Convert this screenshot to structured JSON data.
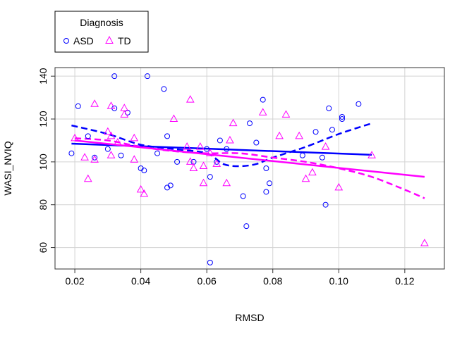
{
  "chart_data": {
    "type": "scatter",
    "xlabel": "RMSD",
    "ylabel": "WASI_NVIQ",
    "xlim": [
      0.014,
      0.132
    ],
    "ylim": [
      50,
      144
    ],
    "x_ticks": [
      0.02,
      0.04,
      0.06,
      0.08,
      0.1,
      0.12
    ],
    "x_tick_labels": [
      "0.02",
      "0.04",
      "0.06",
      "0.08",
      "0.10",
      "0.12"
    ],
    "y_ticks": [
      60,
      80,
      100,
      120,
      140
    ],
    "y_tick_labels": [
      "60",
      "80",
      "100",
      "120",
      "140"
    ],
    "grid": true,
    "legend": {
      "title": "Diagnosis",
      "placement": "top-left-outside",
      "entries": [
        "ASD",
        "TD"
      ]
    },
    "series": [
      {
        "name": "ASD",
        "color": "#0000ff",
        "marker": "circle",
        "points": [
          [
            0.019,
            104
          ],
          [
            0.021,
            126
          ],
          [
            0.024,
            112
          ],
          [
            0.026,
            102
          ],
          [
            0.03,
            106
          ],
          [
            0.032,
            140
          ],
          [
            0.032,
            125
          ],
          [
            0.034,
            103
          ],
          [
            0.036,
            123
          ],
          [
            0.04,
            97
          ],
          [
            0.041,
            96
          ],
          [
            0.042,
            140
          ],
          [
            0.045,
            104
          ],
          [
            0.047,
            134
          ],
          [
            0.048,
            112
          ],
          [
            0.048,
            88
          ],
          [
            0.049,
            89
          ],
          [
            0.051,
            100
          ],
          [
            0.056,
            100
          ],
          [
            0.06,
            106
          ],
          [
            0.061,
            93
          ],
          [
            0.061,
            53
          ],
          [
            0.063,
            100
          ],
          [
            0.064,
            110
          ],
          [
            0.066,
            106
          ],
          [
            0.071,
            84
          ],
          [
            0.072,
            70
          ],
          [
            0.073,
            118
          ],
          [
            0.075,
            109
          ],
          [
            0.077,
            129
          ],
          [
            0.078,
            97
          ],
          [
            0.078,
            86
          ],
          [
            0.079,
            90
          ],
          [
            0.089,
            103
          ],
          [
            0.093,
            114
          ],
          [
            0.095,
            102
          ],
          [
            0.096,
            80
          ],
          [
            0.097,
            125
          ],
          [
            0.098,
            115
          ],
          [
            0.101,
            121
          ],
          [
            0.101,
            120
          ],
          [
            0.106,
            127
          ]
        ],
        "fit_linear": [
          [
            0.019,
            108.5
          ],
          [
            0.11,
            103.3
          ]
        ],
        "fit_smooth": [
          [
            0.019,
            117
          ],
          [
            0.03,
            113
          ],
          [
            0.04,
            108
          ],
          [
            0.05,
            106
          ],
          [
            0.06,
            104
          ],
          [
            0.065,
            99
          ],
          [
            0.07,
            98
          ],
          [
            0.075,
            99
          ],
          [
            0.08,
            102
          ],
          [
            0.09,
            107
          ],
          [
            0.1,
            113
          ],
          [
            0.11,
            118
          ]
        ]
      },
      {
        "name": "TD",
        "color": "#ff00ff",
        "marker": "triangle",
        "points": [
          [
            0.02,
            111
          ],
          [
            0.023,
            102
          ],
          [
            0.024,
            92
          ],
          [
            0.026,
            127
          ],
          [
            0.026,
            101
          ],
          [
            0.03,
            114
          ],
          [
            0.031,
            126
          ],
          [
            0.031,
            112
          ],
          [
            0.031,
            103
          ],
          [
            0.033,
            109
          ],
          [
            0.035,
            125
          ],
          [
            0.035,
            122
          ],
          [
            0.038,
            111
          ],
          [
            0.038,
            101
          ],
          [
            0.04,
            87
          ],
          [
            0.041,
            85
          ],
          [
            0.05,
            120
          ],
          [
            0.054,
            107
          ],
          [
            0.055,
            129
          ],
          [
            0.055,
            100
          ],
          [
            0.056,
            97
          ],
          [
            0.058,
            107
          ],
          [
            0.059,
            90
          ],
          [
            0.059,
            98
          ],
          [
            0.061,
            104
          ],
          [
            0.063,
            99
          ],
          [
            0.066,
            90
          ],
          [
            0.067,
            110
          ],
          [
            0.068,
            118
          ],
          [
            0.077,
            123
          ],
          [
            0.082,
            112
          ],
          [
            0.084,
            122
          ],
          [
            0.088,
            112
          ],
          [
            0.09,
            92
          ],
          [
            0.092,
            95
          ],
          [
            0.096,
            107
          ],
          [
            0.1,
            88
          ],
          [
            0.11,
            103
          ],
          [
            0.126,
            62
          ]
        ],
        "fit_linear": [
          [
            0.02,
            110
          ],
          [
            0.126,
            93
          ]
        ],
        "fit_smooth": [
          [
            0.02,
            111
          ],
          [
            0.03,
            110
          ],
          [
            0.04,
            107
          ],
          [
            0.05,
            105
          ],
          [
            0.06,
            104
          ],
          [
            0.07,
            104
          ],
          [
            0.08,
            102
          ],
          [
            0.09,
            100
          ],
          [
            0.1,
            97
          ],
          [
            0.11,
            93
          ],
          [
            0.12,
            87
          ],
          [
            0.126,
            83
          ]
        ]
      }
    ]
  }
}
